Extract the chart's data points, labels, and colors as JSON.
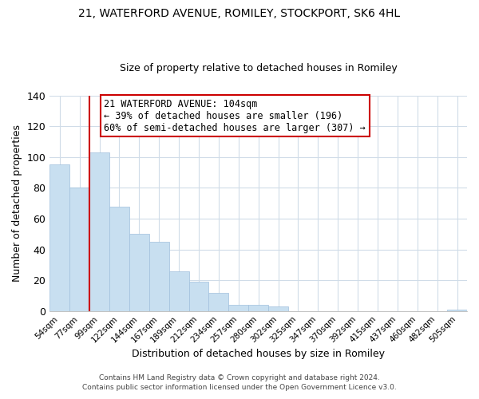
{
  "title1": "21, WATERFORD AVENUE, ROMILEY, STOCKPORT, SK6 4HL",
  "title2": "Size of property relative to detached houses in Romiley",
  "xlabel": "Distribution of detached houses by size in Romiley",
  "ylabel": "Number of detached properties",
  "bar_labels": [
    "54sqm",
    "77sqm",
    "99sqm",
    "122sqm",
    "144sqm",
    "167sqm",
    "189sqm",
    "212sqm",
    "234sqm",
    "257sqm",
    "280sqm",
    "302sqm",
    "325sqm",
    "347sqm",
    "370sqm",
    "392sqm",
    "415sqm",
    "437sqm",
    "460sqm",
    "482sqm",
    "505sqm"
  ],
  "bar_heights": [
    95,
    80,
    103,
    68,
    50,
    45,
    26,
    19,
    12,
    4,
    4,
    3,
    0,
    0,
    0,
    0,
    0,
    0,
    0,
    0,
    1
  ],
  "bar_color": "#c8dff0",
  "bar_edge_color": "#a0c0dc",
  "highlight_bar_index": 2,
  "highlight_color": "#cc0000",
  "annotation_title": "21 WATERFORD AVENUE: 104sqm",
  "annotation_line1": "← 39% of detached houses are smaller (196)",
  "annotation_line2": "60% of semi-detached houses are larger (307) →",
  "annotation_box_color": "#ffffff",
  "annotation_box_edge": "#cc0000",
  "ylim": [
    0,
    140
  ],
  "yticks": [
    0,
    20,
    40,
    60,
    80,
    100,
    120,
    140
  ],
  "footer1": "Contains HM Land Registry data © Crown copyright and database right 2024.",
  "footer2": "Contains public sector information licensed under the Open Government Licence v3.0.",
  "background_color": "#ffffff",
  "grid_color": "#d0dce8"
}
